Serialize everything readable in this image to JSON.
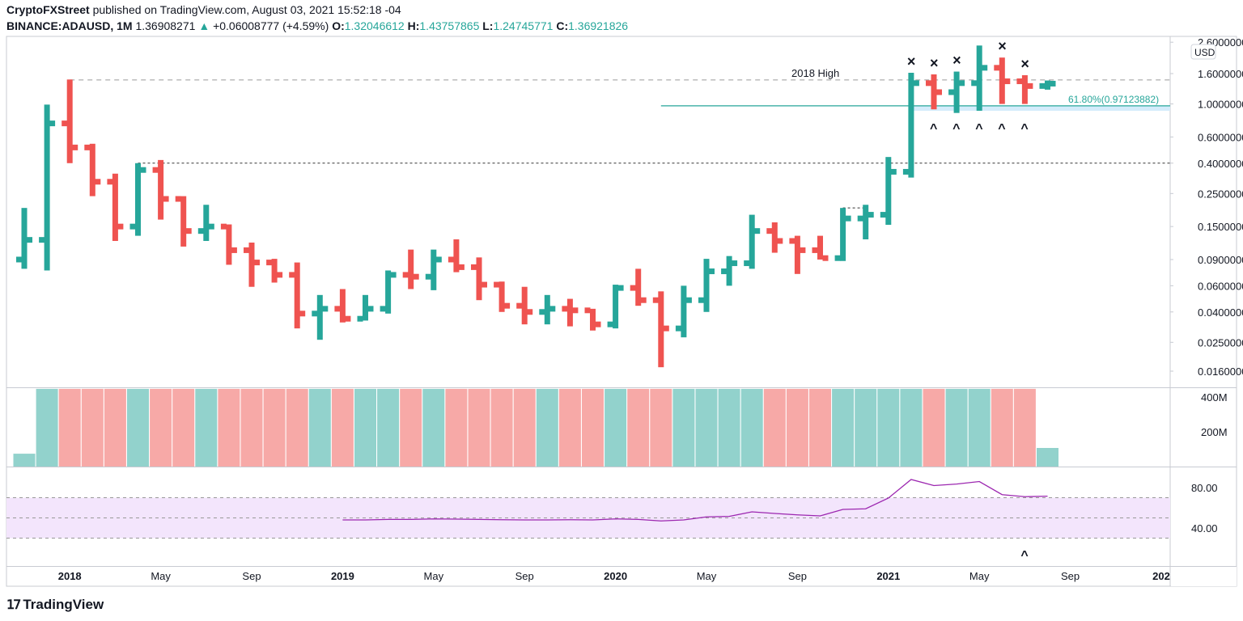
{
  "header": {
    "author": "CryptoFXStreet",
    "published_text": "published on TradingView.com, August 03, 2021 15:52:18 -04",
    "symbol": "BINANCE:ADAUSD, 1M",
    "last": "1.36908271",
    "change": "+0.06008777 (+4.59%)",
    "open_label": "O:",
    "open": "1.32046612",
    "high_label": "H:",
    "high": "1.43757865",
    "low_label": "L:",
    "low": "1.24745771",
    "close_label": "C:",
    "close": "1.36921826"
  },
  "footer": {
    "logo": "TradingView"
  },
  "colors": {
    "up": "#26a69a",
    "down": "#ef5350",
    "vol_up": "#92d2cc",
    "vol_down": "#f7a9a7",
    "rsi": "#9c27b0",
    "rsi_band": "#f3e5fc",
    "fib": "#26a69a",
    "fib_band": "#d4ecfb"
  },
  "chart_data": {
    "type": "ohlc-bar",
    "scale": "log",
    "currency": "USD",
    "ylim": [
      0.014,
      2.8
    ],
    "y_ticks": [
      "2.60000000",
      "1.60000000",
      "1.00000000",
      "0.60000000",
      "0.40000000",
      "0.25000000",
      "0.15000000",
      "0.09000000",
      "0.06000000",
      "0.04000000",
      "0.02500000",
      "0.01600000"
    ],
    "x_ticks": [
      {
        "month_index": 2,
        "label": "2018"
      },
      {
        "month_index": 6,
        "label": "May"
      },
      {
        "month_index": 10,
        "label": "Sep"
      },
      {
        "month_index": 14,
        "label": "2019"
      },
      {
        "month_index": 18,
        "label": "May"
      },
      {
        "month_index": 22,
        "label": "Sep"
      },
      {
        "month_index": 26,
        "label": "2020"
      },
      {
        "month_index": 30,
        "label": "May"
      },
      {
        "month_index": 34,
        "label": "Sep"
      },
      {
        "month_index": 38,
        "label": "2021"
      },
      {
        "month_index": 42,
        "label": "May"
      },
      {
        "month_index": 46,
        "label": "Sep"
      },
      {
        "month_index": 50,
        "label": "202"
      }
    ],
    "first_month": "2017-11",
    "bars": [
      [
        0.09,
        0.2,
        0.078,
        0.122
      ],
      [
        0.122,
        0.99,
        0.076,
        0.74
      ],
      [
        0.74,
        1.46,
        0.4,
        0.51
      ],
      [
        0.51,
        0.54,
        0.24,
        0.3
      ],
      [
        0.3,
        0.34,
        0.12,
        0.15
      ],
      [
        0.15,
        0.4,
        0.13,
        0.36
      ],
      [
        0.36,
        0.42,
        0.167,
        0.23
      ],
      [
        0.23,
        0.24,
        0.11,
        0.14
      ],
      [
        0.14,
        0.21,
        0.12,
        0.15
      ],
      [
        0.15,
        0.155,
        0.083,
        0.104
      ],
      [
        0.104,
        0.117,
        0.059,
        0.086
      ],
      [
        0.086,
        0.091,
        0.063,
        0.071
      ],
      [
        0.071,
        0.086,
        0.031,
        0.039
      ],
      [
        0.039,
        0.052,
        0.026,
        0.042
      ],
      [
        0.042,
        0.057,
        0.034,
        0.036
      ],
      [
        0.036,
        0.052,
        0.035,
        0.042
      ],
      [
        0.042,
        0.076,
        0.039,
        0.071
      ],
      [
        0.071,
        0.105,
        0.057,
        0.069
      ],
      [
        0.069,
        0.105,
        0.056,
        0.09
      ],
      [
        0.09,
        0.123,
        0.074,
        0.08
      ],
      [
        0.08,
        0.093,
        0.048,
        0.061
      ],
      [
        0.061,
        0.064,
        0.04,
        0.044
      ],
      [
        0.044,
        0.059,
        0.033,
        0.04
      ],
      [
        0.04,
        0.052,
        0.033,
        0.042
      ],
      [
        0.042,
        0.049,
        0.032,
        0.041
      ],
      [
        0.041,
        0.042,
        0.03,
        0.033
      ],
      [
        0.033,
        0.061,
        0.031,
        0.058
      ],
      [
        0.058,
        0.078,
        0.044,
        0.048
      ],
      [
        0.048,
        0.055,
        0.017,
        0.031
      ],
      [
        0.031,
        0.06,
        0.027,
        0.048
      ],
      [
        0.048,
        0.091,
        0.04,
        0.075
      ],
      [
        0.075,
        0.095,
        0.06,
        0.085
      ],
      [
        0.085,
        0.18,
        0.078,
        0.14
      ],
      [
        0.14,
        0.16,
        0.1,
        0.12
      ],
      [
        0.12,
        0.13,
        0.072,
        0.104
      ],
      [
        0.104,
        0.13,
        0.09,
        0.092
      ],
      [
        0.092,
        0.2,
        0.088,
        0.17
      ],
      [
        0.17,
        0.21,
        0.123,
        0.18
      ],
      [
        0.18,
        0.44,
        0.154,
        0.35
      ],
      [
        0.35,
        1.62,
        0.32,
        1.38
      ],
      [
        1.38,
        1.58,
        0.92,
        1.2
      ],
      [
        1.2,
        1.65,
        0.87,
        1.38
      ],
      [
        1.38,
        2.47,
        0.9,
        1.75
      ],
      [
        1.75,
        2.05,
        1.0,
        1.42
      ],
      [
        1.42,
        1.56,
        1.0,
        1.32
      ],
      [
        1.32046612,
        1.43757865,
        1.24745771,
        1.36921826
      ]
    ],
    "volume": {
      "unit": "M",
      "y_ticks": [
        "400M",
        "200M"
      ],
      "ylim": [
        0,
        447
      ],
      "values": [
        74,
        450,
        450,
        450,
        450,
        450,
        450,
        450,
        450,
        450,
        450,
        450,
        450,
        450,
        450,
        450,
        450,
        450,
        450,
        450,
        450,
        450,
        450,
        450,
        450,
        450,
        450,
        450,
        450,
        450,
        450,
        450,
        450,
        450,
        450,
        450,
        450,
        450,
        450,
        450,
        450,
        450,
        450,
        450,
        450,
        107
      ]
    },
    "rsi": {
      "y_ticks": [
        "80.00",
        "40.00"
      ],
      "ylim": [
        14,
        100
      ],
      "bands": [
        30,
        50,
        70
      ],
      "values": [
        null,
        null,
        null,
        null,
        null,
        null,
        null,
        null,
        null,
        null,
        null,
        null,
        null,
        null,
        48,
        48,
        48.5,
        48.5,
        49,
        48.8,
        48.5,
        48.2,
        48,
        48,
        48.2,
        48,
        49,
        48.5,
        47,
        48,
        51,
        51.5,
        56,
        54.4,
        53,
        52,
        58.4,
        59,
        69.6,
        88,
        82,
        83.5,
        86,
        73,
        71,
        71.5
      ]
    },
    "annotations": {
      "resistance_label": "2018 High",
      "resistance_value": 1.45,
      "support_value": 0.4,
      "short_level_value": 0.2,
      "fib_label": "61.80%(0.97123882)",
      "fib_value": 0.97123882,
      "fib_band_low": 0.9,
      "x_marks_month_index": [
        39,
        40,
        41,
        43,
        44
      ],
      "caret_marks_month_index": [
        40,
        41,
        42,
        43,
        44
      ],
      "rsi_caret_month_index": [
        44
      ],
      "x_mark": "×",
      "caret_mark": "^"
    }
  }
}
